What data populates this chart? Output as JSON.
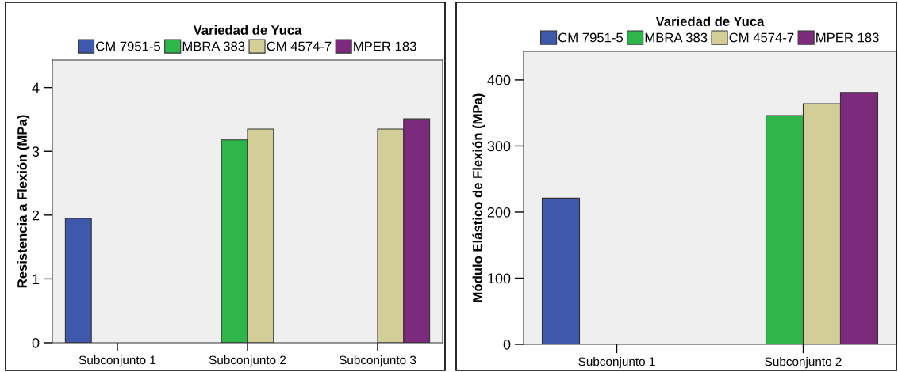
{
  "chart_data": [
    {
      "type": "bar",
      "ylabel": "Resistencia a Flexión (MPa)",
      "legend_title": "Variedad de Yuca",
      "legend": "top",
      "grid": false,
      "categories": [
        "Subconjunto 1",
        "Subconjunto 2",
        "Subconjunto 3"
      ],
      "ylim": [
        0,
        4.43
      ],
      "yticks": [
        0,
        1,
        2,
        3,
        4
      ],
      "series": [
        {
          "name": "CM 7951-5",
          "color": "#3e58ac",
          "values": [
            1.95,
            null,
            null
          ]
        },
        {
          "name": "MBRA 383",
          "color": "#2fb64a",
          "values": [
            null,
            3.18,
            null
          ]
        },
        {
          "name": "CM 4574-7",
          "color": "#d3ce97",
          "values": [
            null,
            3.35,
            3.35
          ]
        },
        {
          "name": "MPER 183",
          "color": "#7b2a7c",
          "values": [
            null,
            null,
            3.51
          ]
        }
      ]
    },
    {
      "type": "bar",
      "ylabel": "Módulo Elástico de Flexión (MPa)",
      "legend_title": "Variedad de Yuca",
      "legend": "top",
      "grid": false,
      "categories": [
        "Subconjunto 1",
        "Subconjunto 2"
      ],
      "ylim": [
        0,
        443
      ],
      "yticks": [
        0,
        100,
        200,
        300,
        400
      ],
      "series": [
        {
          "name": "CM 7951-5",
          "color": "#3e58ac",
          "values": [
            221,
            null
          ]
        },
        {
          "name": "MBRA 383",
          "color": "#2fb64a",
          "values": [
            null,
            346
          ]
        },
        {
          "name": "CM 4574-7",
          "color": "#d3ce97",
          "values": [
            null,
            364
          ]
        },
        {
          "name": "MPER 183",
          "color": "#7b2a7c",
          "values": [
            null,
            381
          ]
        }
      ]
    }
  ]
}
